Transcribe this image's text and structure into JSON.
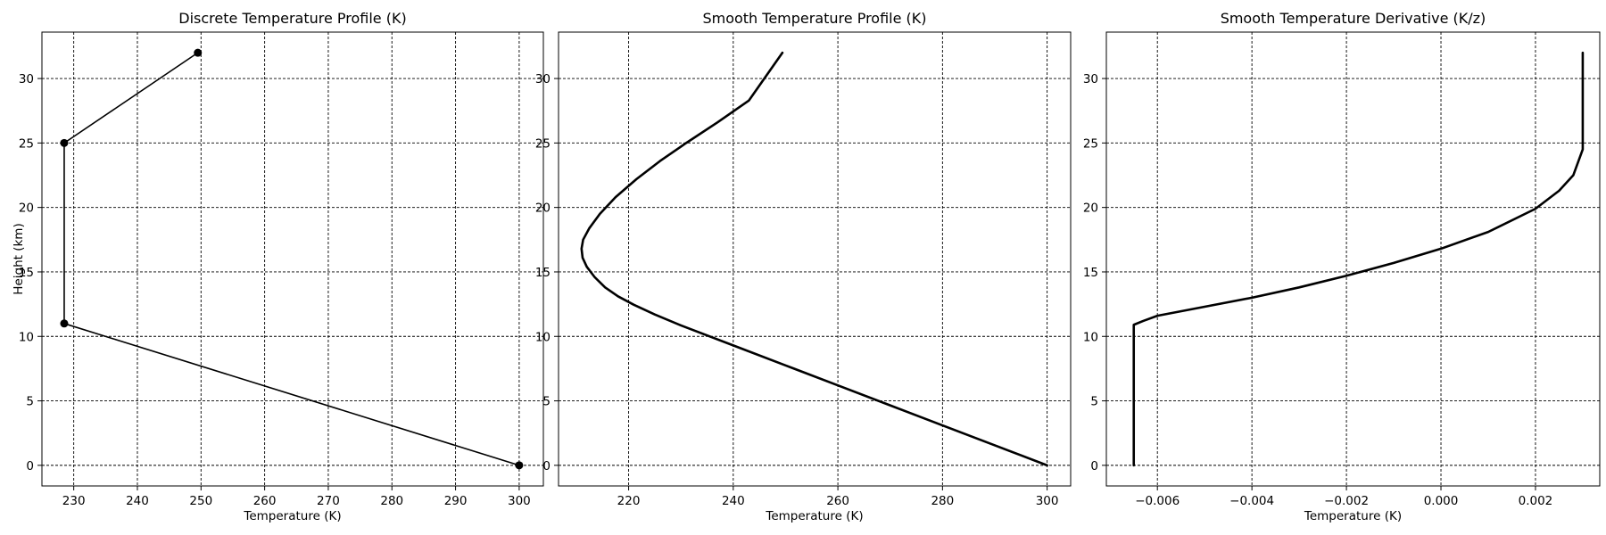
{
  "chart_data": [
    {
      "type": "line",
      "title": "Discrete Temperature Profile (K)",
      "xlabel": "Temperature (K)",
      "ylabel": "Height (km)",
      "xlim": [
        225,
        303.8
      ],
      "ylim": [
        -1.6,
        33.6
      ],
      "xticks": [
        "230",
        "240",
        "250",
        "260",
        "270",
        "280",
        "290",
        "300"
      ],
      "yticks": [
        "0",
        "5",
        "10",
        "15",
        "20",
        "25",
        "30"
      ],
      "grid": true,
      "markers": true,
      "series": [
        {
          "x": [
            300.0,
            228.5,
            228.5,
            249.5
          ],
          "y": [
            0,
            11,
            25,
            32
          ]
        }
      ]
    },
    {
      "type": "line",
      "title": "Smooth Temperature Profile (K)",
      "xlabel": "Temperature (K)",
      "ylabel": "",
      "xlim": [
        206.6,
        304.5
      ],
      "ylim": [
        -1.6,
        33.6
      ],
      "xticks": [
        "220",
        "240",
        "260",
        "280",
        "300"
      ],
      "yticks": [
        "0",
        "5",
        "10",
        "15",
        "20",
        "25",
        "30"
      ],
      "grid": true,
      "markers": false,
      "series": [
        {
          "x": [
            300.0,
            290.0,
            280.0,
            270.0,
            260.0,
            250.0,
            240.0,
            230.0,
            225.0,
            221.0,
            218.0,
            215.5,
            213.5,
            212.0,
            211.2,
            211.0,
            211.3,
            212.5,
            214.5,
            217.5,
            221.5,
            226.0,
            231.0,
            237.0,
            243.0,
            249.4
          ],
          "y": [
            0,
            1.55,
            3.1,
            4.65,
            6.2,
            7.75,
            9.3,
            10.85,
            11.7,
            12.45,
            13.1,
            13.8,
            14.6,
            15.4,
            16.1,
            16.8,
            17.5,
            18.4,
            19.5,
            20.8,
            22.2,
            23.6,
            25.0,
            26.6,
            28.3,
            32.0
          ]
        }
      ]
    },
    {
      "type": "line",
      "title": "Smooth Temperature Derivative (K/z)",
      "xlabel": "Temperature (K)",
      "ylabel": "",
      "xlim": [
        -0.00708,
        0.00336
      ],
      "ylim": [
        -1.6,
        33.6
      ],
      "xticks": [
        "−0.006",
        "−0.004",
        "−0.002",
        "0.000",
        "0.002"
      ],
      "yticks": [
        "0",
        "5",
        "10",
        "15",
        "20",
        "25",
        "30"
      ],
      "grid": true,
      "markers": false,
      "series": [
        {
          "x": [
            -0.0065,
            -0.0065,
            -0.0065,
            -0.0063,
            -0.006,
            -0.005,
            -0.004,
            -0.003,
            -0.002,
            -0.001,
            0.0,
            0.001,
            0.002,
            0.0025,
            0.0028,
            0.0029,
            0.003,
            0.003,
            0.003
          ],
          "y": [
            0,
            5,
            10.9,
            11.2,
            11.6,
            12.3,
            13.0,
            13.8,
            14.7,
            15.7,
            16.8,
            18.1,
            19.9,
            21.3,
            22.5,
            23.5,
            24.5,
            25.0,
            32.0
          ]
        }
      ]
    }
  ]
}
